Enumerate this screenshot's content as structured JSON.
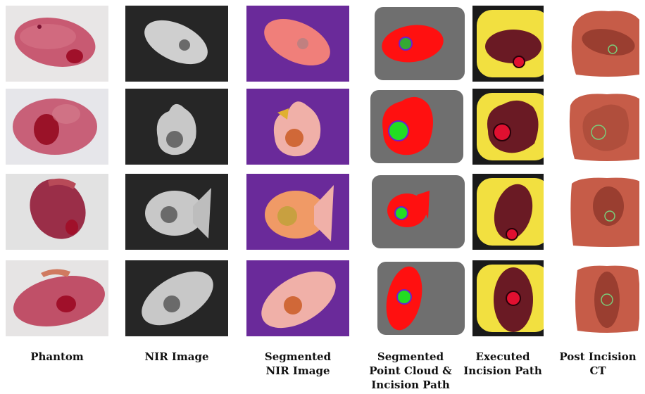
{
  "columns": [
    {
      "lines": [
        "Phantom"
      ]
    },
    {
      "lines": [
        "NIR Image"
      ]
    },
    {
      "lines": [
        "Segmented",
        "NIR Image"
      ]
    },
    {
      "lines": [
        "Segmented",
        "Point Cloud &",
        "Incision Path"
      ]
    },
    {
      "lines": [
        "Executed",
        "Incision Path"
      ]
    },
    {
      "lines": [
        "Post Incision",
        "CT"
      ]
    }
  ],
  "rows": 4,
  "colors": {
    "phantom_pink": "#c85a72",
    "tumor_red": "#b0122a",
    "nir_background": "#262626",
    "seg_background": "#6a2a9a",
    "seg_kidney": "#f0b0a8",
    "pointcloud_red": "#ff1010",
    "pointcloud_green": "#22dd22",
    "ct_orange": "#c65c48",
    "exec_yellow": "#f2e040"
  }
}
